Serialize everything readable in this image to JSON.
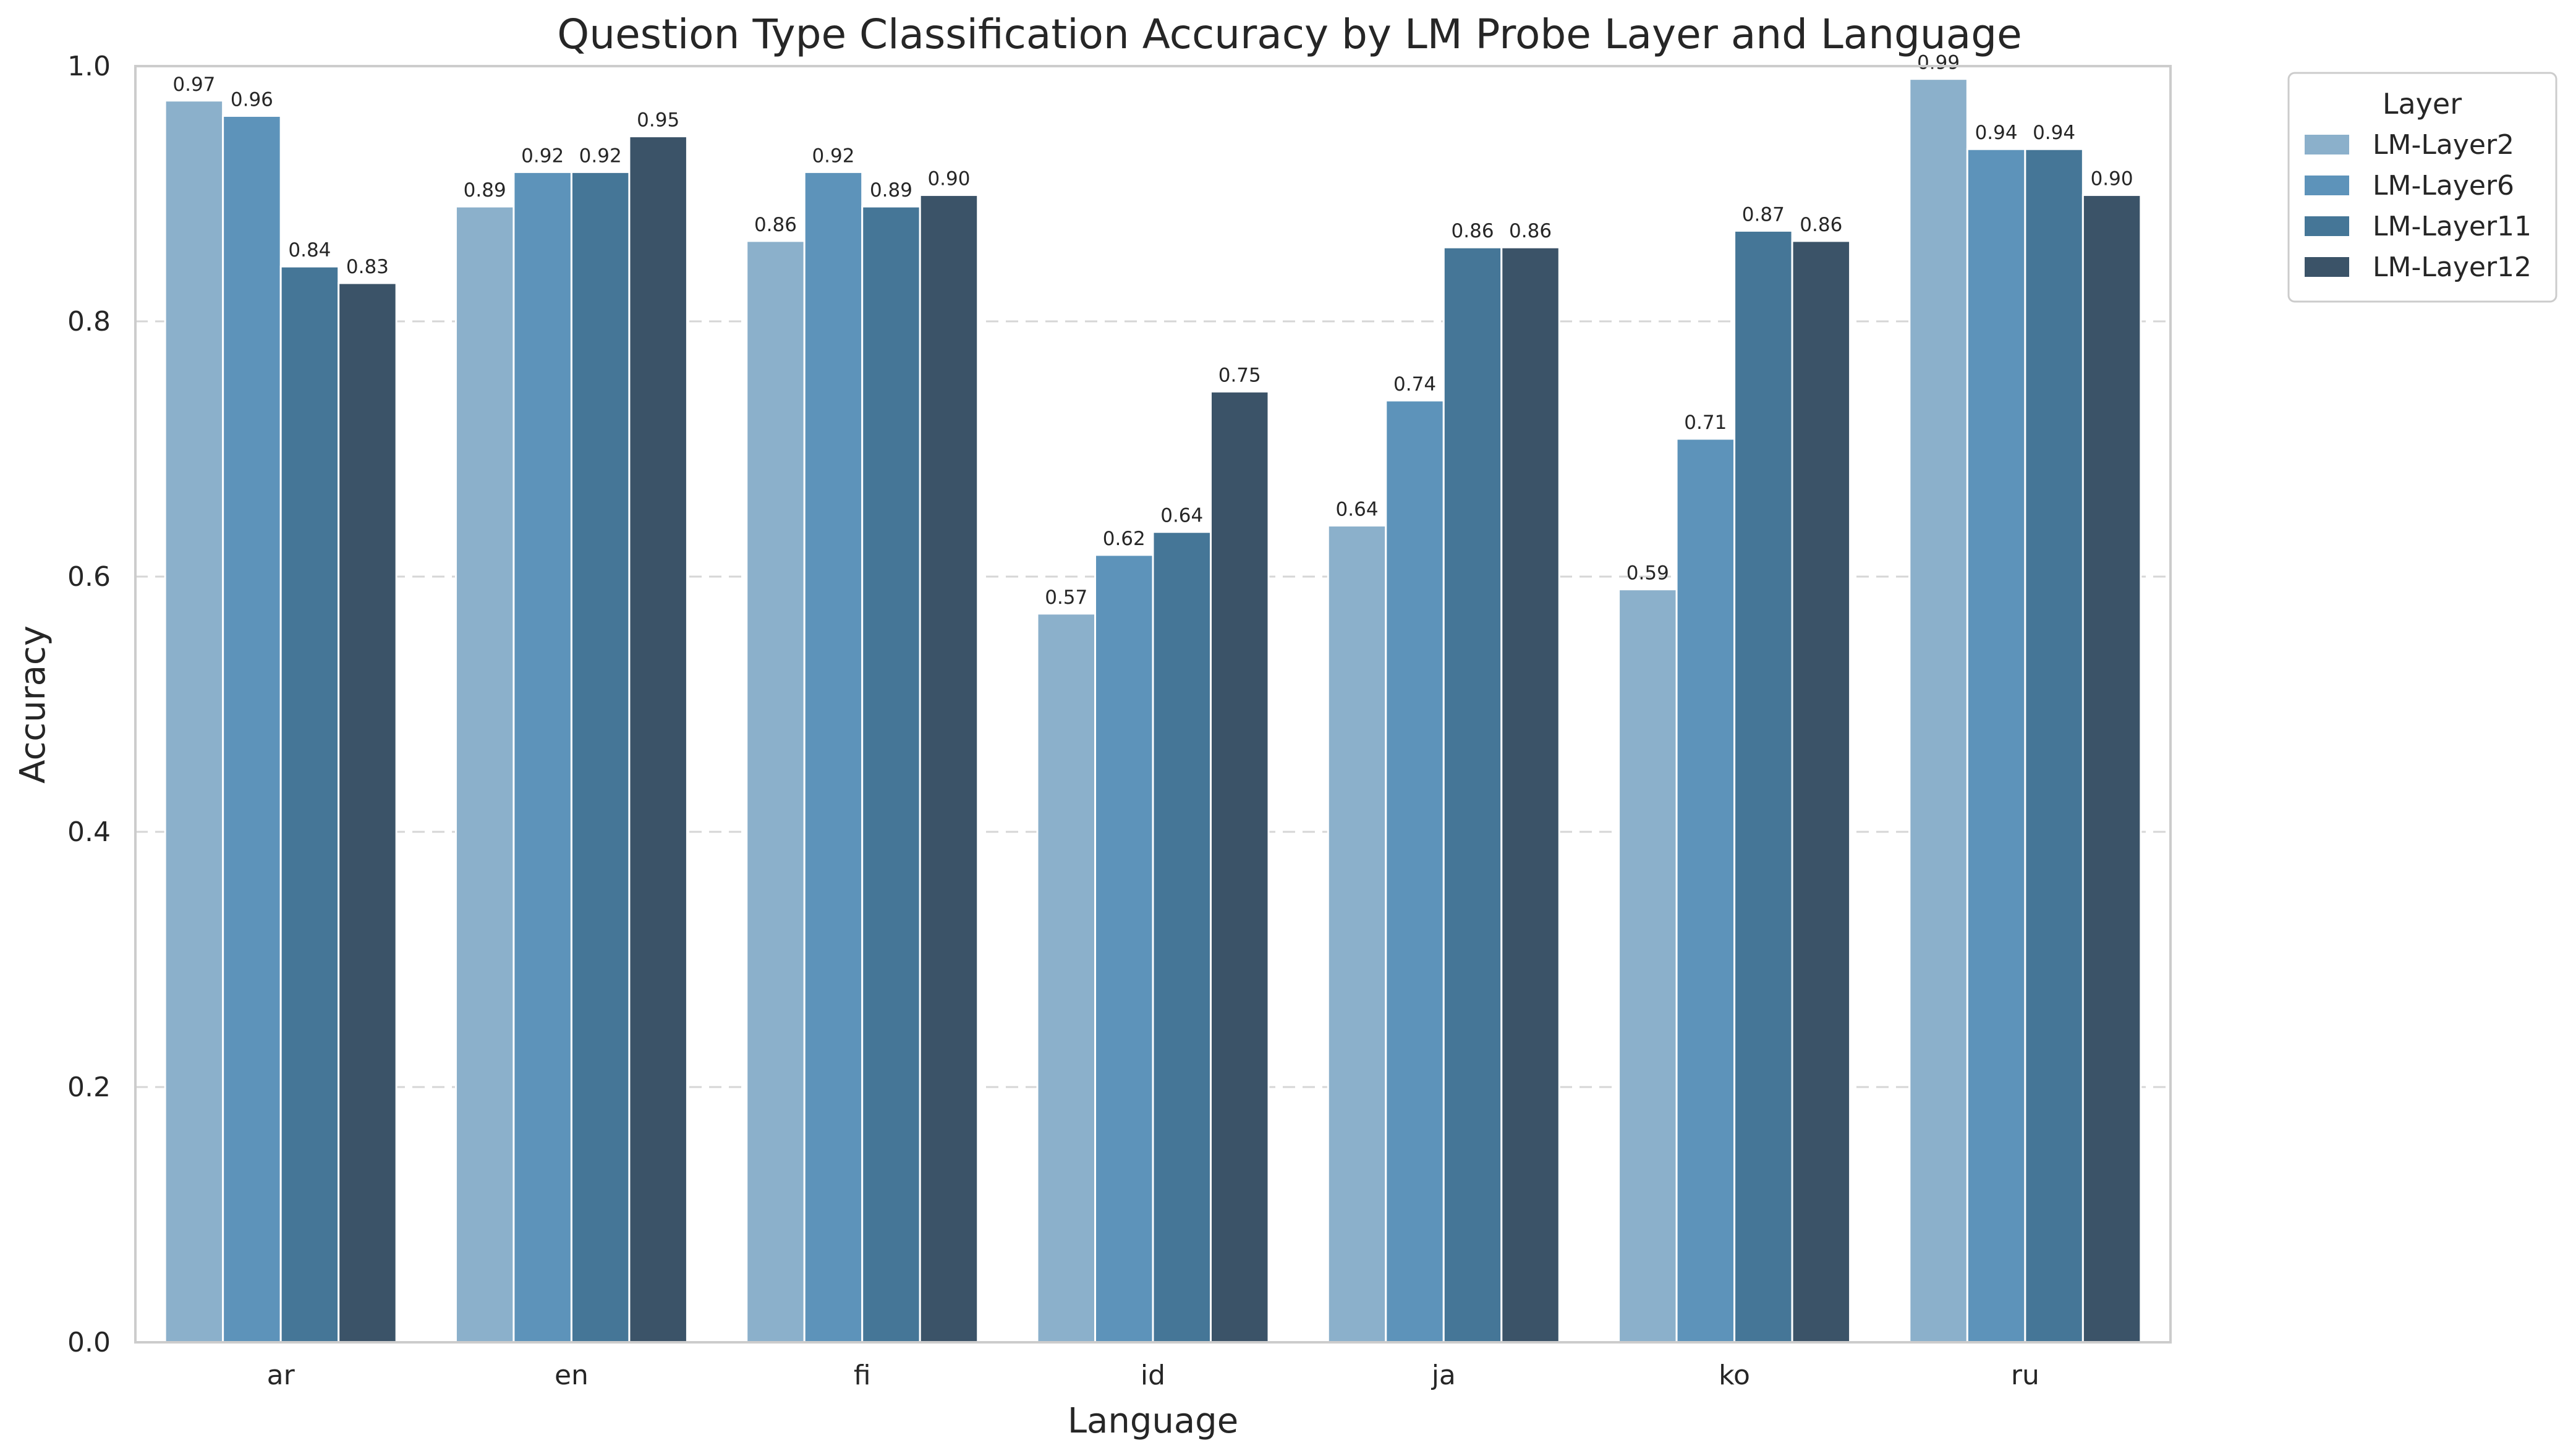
{
  "chart_data": {
    "type": "bar",
    "title": "Question Type Classification Accuracy by LM Probe Layer and Language",
    "xlabel": "Language",
    "ylabel": "Accuracy",
    "ylim": [
      0,
      1.0
    ],
    "yticks": [
      "0.0",
      "0.2",
      "0.4",
      "0.6",
      "0.8",
      "1.0"
    ],
    "grid": "horizontal-dashed",
    "legend": {
      "title": "Layer",
      "placement": "outside-top-right"
    },
    "categories": [
      "ar",
      "en",
      "fi",
      "id",
      "ja",
      "ko",
      "ru"
    ],
    "series": [
      {
        "name": "LM-Layer2",
        "color": "#8bb0cb",
        "values": [
          0.973,
          0.89,
          0.863,
          0.571,
          0.64,
          0.59,
          0.99
        ],
        "labels": [
          "0.97",
          "0.89",
          "0.86",
          "0.57",
          "0.64",
          "0.59",
          "0.99"
        ]
      },
      {
        "name": "LM-Layer6",
        "color": "#5d93ba",
        "values": [
          0.961,
          0.917,
          0.917,
          0.617,
          0.738,
          0.708,
          0.935
        ],
        "labels": [
          "0.96",
          "0.92",
          "0.92",
          "0.62",
          "0.74",
          "0.71",
          "0.94"
        ]
      },
      {
        "name": "LM-Layer11",
        "color": "#457697",
        "values": [
          0.843,
          0.917,
          0.89,
          0.635,
          0.858,
          0.871,
          0.935
        ],
        "labels": [
          "0.84",
          "0.92",
          "0.89",
          "0.64",
          "0.86",
          "0.87",
          "0.94"
        ]
      },
      {
        "name": "LM-Layer12",
        "color": "#3b5368",
        "values": [
          0.83,
          0.945,
          0.899,
          0.745,
          0.858,
          0.863,
          0.899
        ],
        "labels": [
          "0.83",
          "0.95",
          "0.90",
          "0.75",
          "0.86",
          "0.86",
          "0.90"
        ]
      }
    ]
  }
}
